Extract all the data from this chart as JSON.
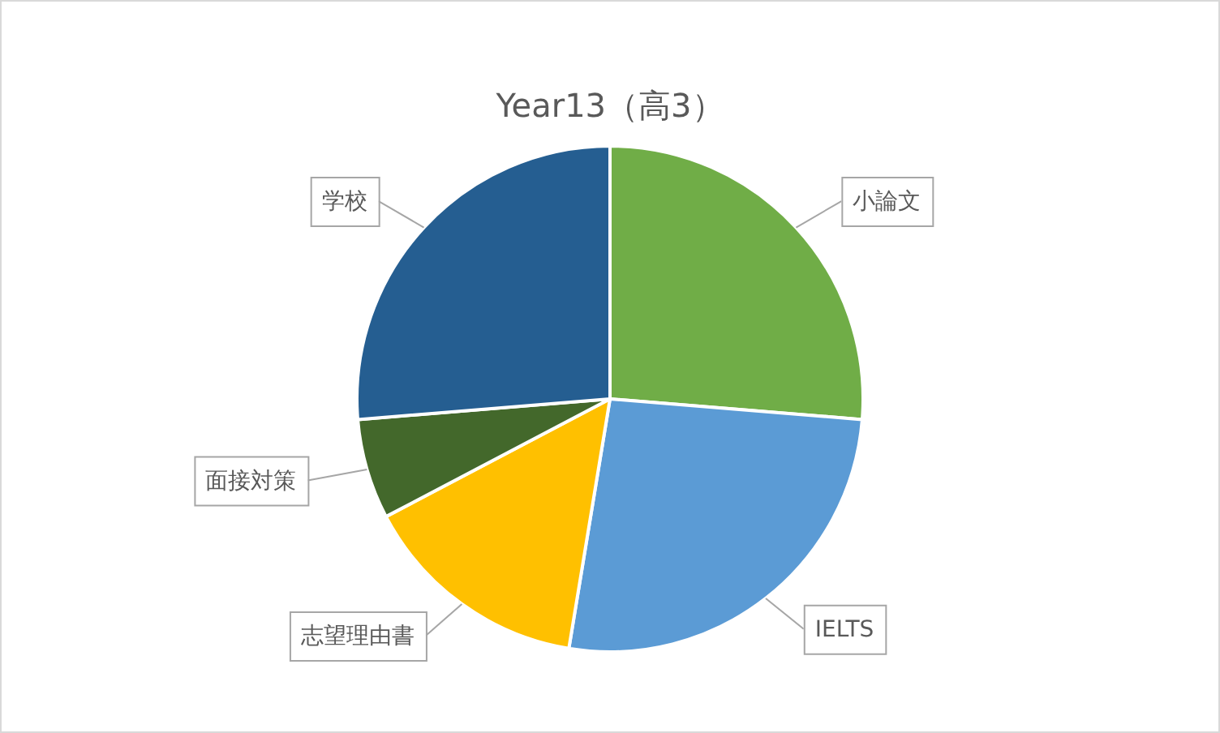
{
  "chart_data": {
    "type": "pie",
    "title": "Year13（高3）",
    "categories": [
      "小論文",
      "IELTS",
      "志望理由書",
      "面接対策",
      "学校"
    ],
    "values": [
      26.3,
      26.3,
      14.7,
      6.4,
      26.3
    ],
    "colors": [
      "#70ad47",
      "#5b9bd5",
      "#ffc000",
      "#43682b",
      "#255e91"
    ],
    "legend": false
  }
}
